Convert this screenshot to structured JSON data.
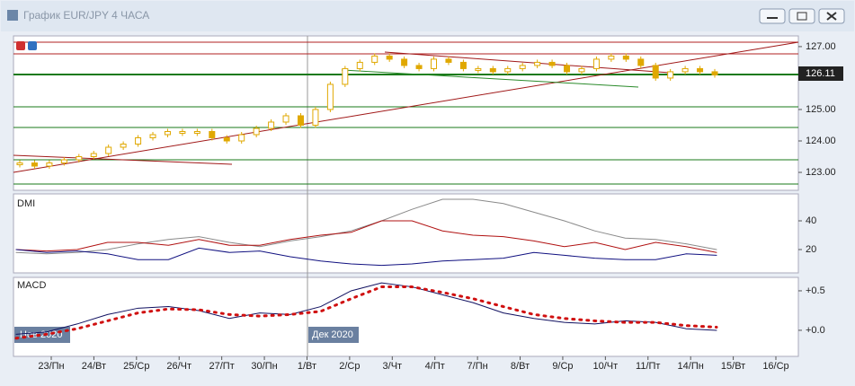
{
  "window": {
    "title": "График EUR/JPY  4 ЧАСА"
  },
  "price_panel": {
    "ylim": [
      122.43,
      127.34
    ],
    "yticks": [
      {
        "value": 127,
        "label": "127.00"
      },
      {
        "value": 125,
        "label": "125.00"
      },
      {
        "value": 124,
        "label": "124.00"
      },
      {
        "value": 123,
        "label": "123.00"
      }
    ],
    "current_price": 126.11,
    "closes": [
      123.3,
      123.2,
      123.3,
      123.4,
      123.5,
      123.6,
      123.8,
      123.9,
      124.1,
      124.2,
      124.3,
      124.3,
      124.3,
      124.1,
      124.0,
      124.2,
      124.4,
      124.6,
      124.8,
      124.5,
      125.0,
      125.8,
      126.3,
      126.5,
      126.7,
      126.6,
      126.4,
      126.3,
      126.6,
      126.5,
      126.3,
      126.3,
      126.2,
      126.3,
      126.4,
      126.5,
      126.4,
      126.2,
      126.3,
      126.6,
      126.7,
      126.6,
      126.4,
      126.0,
      126.2,
      126.3,
      126.2,
      126.1
    ],
    "color": "#e0a800"
  },
  "dmi_panel": {
    "label": "DMI",
    "ylim": [
      3.75,
      58.75
    ],
    "yticks": [
      40,
      20
    ],
    "series": [
      {
        "color": "#8a8a8a",
        "values": [
          18,
          17,
          18,
          20,
          24,
          27,
          29,
          25,
          22,
          26,
          29,
          33,
          40,
          48,
          55,
          55,
          52,
          46,
          40,
          33,
          28,
          27,
          24,
          20
        ]
      },
      {
        "color": "#b01010",
        "values": [
          20,
          19,
          20,
          25,
          25,
          23,
          27,
          23,
          23,
          27,
          30,
          32,
          40,
          40,
          33,
          30,
          29,
          26,
          22,
          25,
          20,
          25,
          22,
          18
        ]
      },
      {
        "color": "#101080",
        "values": [
          20,
          18,
          19,
          17,
          13,
          13,
          21,
          18,
          19,
          15,
          12,
          10,
          9,
          10,
          12,
          13,
          14,
          18,
          16,
          14,
          13,
          13,
          17,
          16
        ]
      }
    ]
  },
  "macd_panel": {
    "label": "MACD",
    "ylim": [
      -0.33,
      0.67
    ],
    "yticks": [
      {
        "value": 0.5,
        "label": "+0.5"
      },
      {
        "value": 0,
        "label": "+0.0"
      }
    ],
    "series": [
      {
        "color": "#101060",
        "values": [
          -0.05,
          -0.02,
          0.08,
          0.2,
          0.28,
          0.3,
          0.25,
          0.15,
          0.22,
          0.2,
          0.3,
          0.5,
          0.6,
          0.55,
          0.45,
          0.35,
          0.22,
          0.15,
          0.1,
          0.08,
          0.12,
          0.1,
          0.02,
          0.0
        ]
      },
      {
        "color": "#d01010",
        "values": [
          -0.1,
          -0.05,
          0.02,
          0.12,
          0.22,
          0.27,
          0.26,
          0.2,
          0.18,
          0.2,
          0.24,
          0.4,
          0.55,
          0.55,
          0.48,
          0.4,
          0.3,
          0.2,
          0.15,
          0.12,
          0.1,
          0.1,
          0.06,
          0.04
        ]
      }
    ]
  },
  "months": [
    "Нов 2020",
    "Дек 2020"
  ],
  "dates": [
    "23/Пн",
    "24/Вт",
    "25/Ср",
    "26/Чт",
    "27/Пт",
    "30/Пн",
    "1/Вт",
    "2/Ср",
    "3/Чт",
    "4/Пт",
    "7/Пн",
    "8/Вт",
    "9/Ср",
    "10/Чт",
    "11/Пт",
    "14/Пн",
    "15/Вт",
    "16/Ср"
  ]
}
